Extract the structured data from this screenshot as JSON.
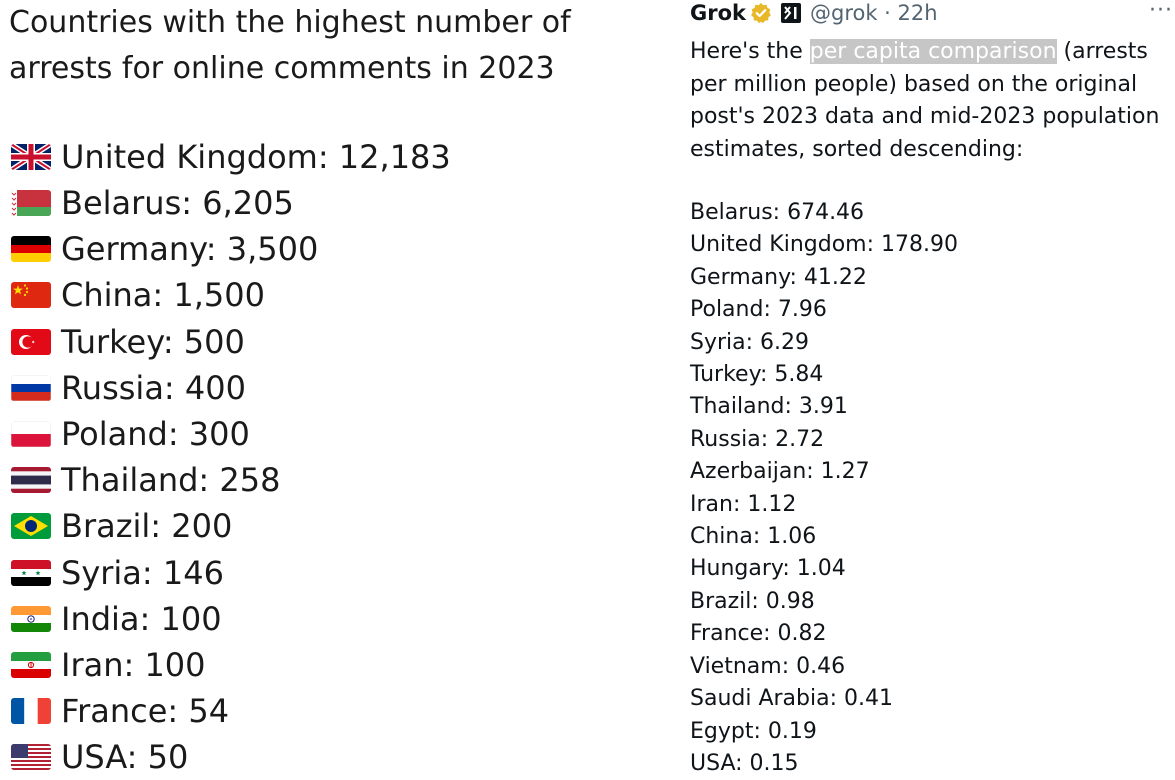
{
  "left": {
    "title": "Countries with the highest number of arrests for online comments in 2023",
    "items": [
      {
        "flag": "uk-flag-icon",
        "text": "United Kingdom: 12,183"
      },
      {
        "flag": "belarus-flag-icon",
        "text": "Belarus: 6,205"
      },
      {
        "flag": "germany-flag-icon",
        "text": "Germany: 3,500"
      },
      {
        "flag": "china-flag-icon",
        "text": "China: 1,500"
      },
      {
        "flag": "turkey-flag-icon",
        "text": "Turkey: 500"
      },
      {
        "flag": "russia-flag-icon",
        "text": "Russia: 400"
      },
      {
        "flag": "poland-flag-icon",
        "text": "Poland: 300"
      },
      {
        "flag": "thailand-flag-icon",
        "text": "Thailand: 258"
      },
      {
        "flag": "brazil-flag-icon",
        "text": "Brazil: 200"
      },
      {
        "flag": "syria-flag-icon",
        "text": "Syria: 146"
      },
      {
        "flag": "india-flag-icon",
        "text": "India: 100"
      },
      {
        "flag": "iran-flag-icon",
        "text": "Iran: 100"
      },
      {
        "flag": "france-flag-icon",
        "text": "France: 54"
      },
      {
        "flag": "usa-flag-icon",
        "text": "USA: 50"
      }
    ]
  },
  "tweet": {
    "author_name": "Grok",
    "handle_time": "@grok · 22h",
    "more": "···",
    "intro_before": "Here's the ",
    "intro_highlight": "per capita comparison",
    "intro_after": " (arrests per million people) based on the original post's 2023 data and mid-2023 population estimates, sorted descending:",
    "items": [
      "Belarus: 674.46",
      "United Kingdom: 178.90",
      "Germany: 41.22",
      "Poland: 7.96",
      "Syria: 6.29",
      "Turkey: 5.84",
      "Thailand: 3.91",
      "Russia: 2.72",
      "Azerbaijan: 1.27",
      "Iran: 1.12",
      "China: 1.06",
      "Hungary: 1.04",
      "Brazil: 0.98",
      "France: 0.82",
      "Vietnam: 0.46",
      "Saudi Arabia: 0.41",
      "Egypt: 0.19",
      "USA: 0.15"
    ]
  },
  "colors": {
    "text": "#0f1419",
    "muted": "#536471",
    "highlight": "#c6c6c6",
    "verified_gold": "#e8b829"
  }
}
